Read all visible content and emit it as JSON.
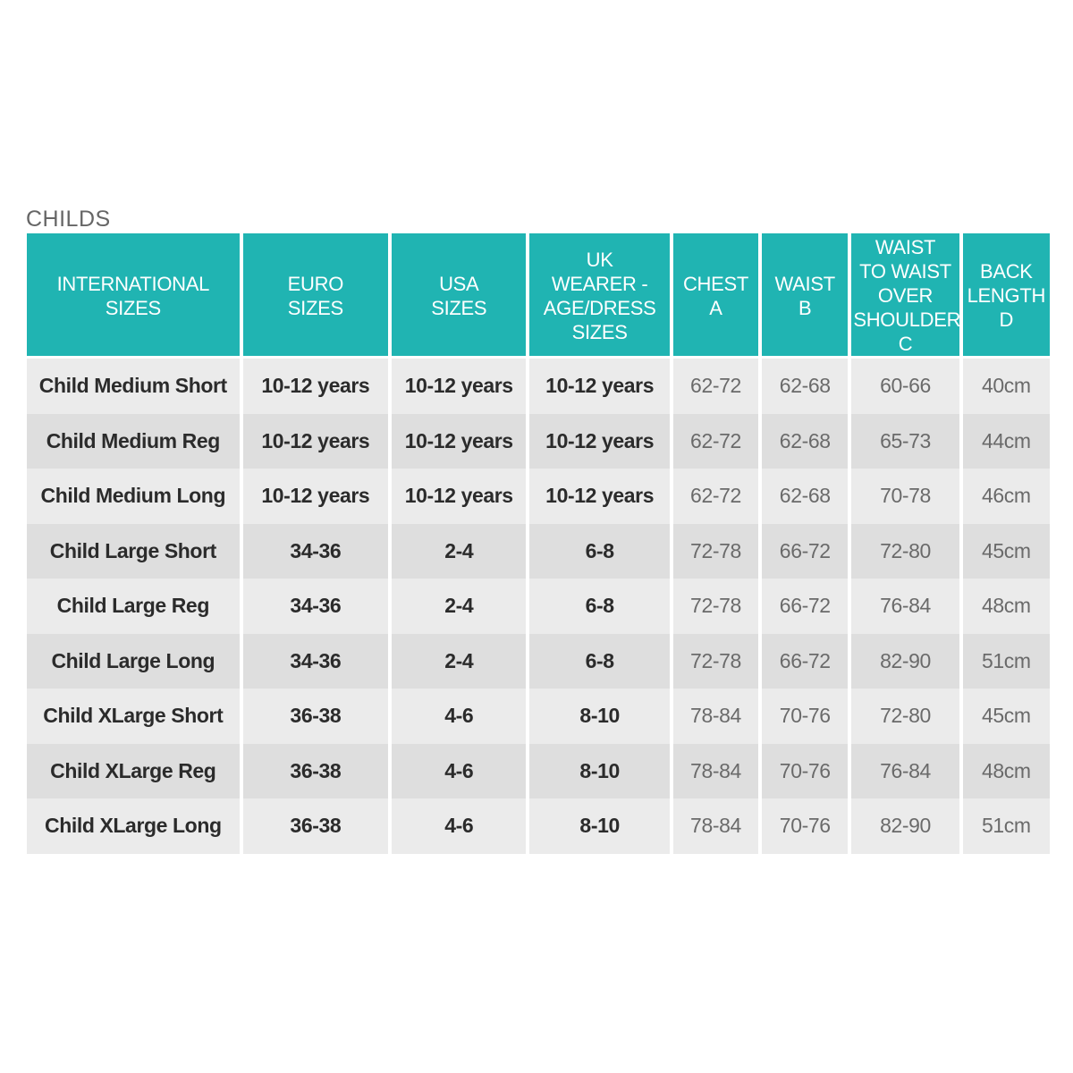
{
  "section_title": "CHILDS",
  "table": {
    "columns": [
      "INTERNATIONAL\nSIZES",
      "EURO\nSIZES",
      "USA\nSIZES",
      "UK\nWEARER -\nAGE/DRESS\nSIZES",
      "CHEST\nA",
      "WAIST\nB",
      "WAIST\nTO WAIST\nOVER\nSHOULDER\nC",
      "BACK\nLENGTH\nD"
    ],
    "rows": [
      [
        "Child Medium Short",
        "10-12 years",
        "10-12 years",
        "10-12 years",
        "62-72",
        "62-68",
        "60-66",
        "40cm"
      ],
      [
        "Child Medium Reg",
        "10-12 years",
        "10-12 years",
        "10-12 years",
        "62-72",
        "62-68",
        "65-73",
        "44cm"
      ],
      [
        "Child Medium Long",
        "10-12 years",
        "10-12 years",
        "10-12 years",
        "62-72",
        "62-68",
        "70-78",
        "46cm"
      ],
      [
        "Child Large Short",
        "34-36",
        "2-4",
        "6-8",
        "72-78",
        "66-72",
        "72-80",
        "45cm"
      ],
      [
        "Child Large Reg",
        "34-36",
        "2-4",
        "6-8",
        "72-78",
        "66-72",
        "76-84",
        "48cm"
      ],
      [
        "Child Large Long",
        "34-36",
        "2-4",
        "6-8",
        "72-78",
        "66-72",
        "82-90",
        "51cm"
      ],
      [
        "Child XLarge Short",
        "36-38",
        "4-6",
        "8-10",
        "78-84",
        "70-76",
        "72-80",
        "45cm"
      ],
      [
        "Child XLarge Reg",
        "36-38",
        "4-6",
        "8-10",
        "78-84",
        "70-76",
        "76-84",
        "48cm"
      ],
      [
        "Child XLarge Long",
        "36-38",
        "4-6",
        "8-10",
        "78-84",
        "70-76",
        "82-90",
        "51cm"
      ]
    ]
  },
  "colors": {
    "header_bg": "#20b4b2",
    "row_light": "#ebebeb",
    "row_dark": "#dedede"
  }
}
